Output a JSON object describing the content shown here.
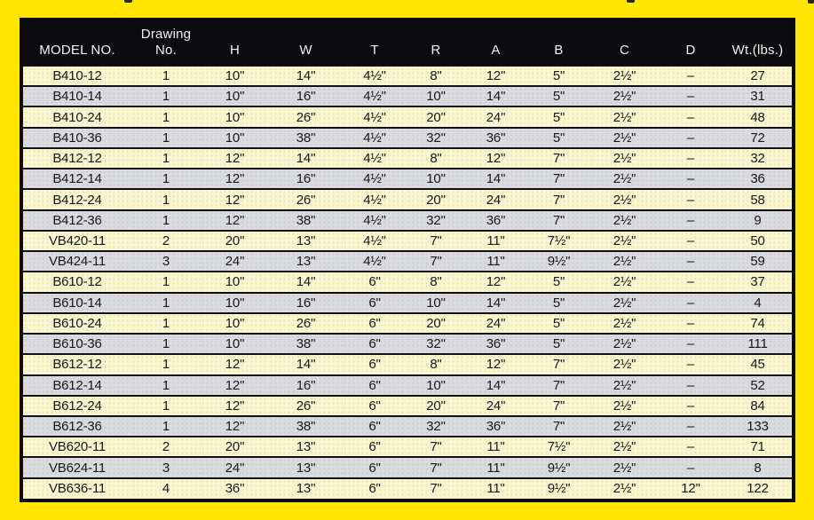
{
  "page": {
    "background_color": "#ffe600"
  },
  "spec_table": {
    "header_bg": "#0c0c10",
    "header_text_color": "#f4f2ee",
    "row_color_odd": "#fbf6cd",
    "row_color_even": "#d9dbde",
    "columns": [
      {
        "id": "model",
        "label": "MODEL NO."
      },
      {
        "id": "drawing_no",
        "label": "Drawing\nNo."
      },
      {
        "id": "h",
        "label": "H"
      },
      {
        "id": "w",
        "label": "W"
      },
      {
        "id": "t",
        "label": "T"
      },
      {
        "id": "r",
        "label": "R"
      },
      {
        "id": "a",
        "label": "A"
      },
      {
        "id": "b",
        "label": "B"
      },
      {
        "id": "c",
        "label": "C"
      },
      {
        "id": "d",
        "label": "D"
      },
      {
        "id": "wt",
        "label": "Wt.(lbs.)"
      }
    ],
    "rows": [
      [
        "B410-12",
        "1",
        "10\"",
        "14\"",
        "4½\"",
        "8\"",
        "12\"",
        "5\"",
        "2½\"",
        "–",
        "27"
      ],
      [
        "B410-14",
        "1",
        "10\"",
        "16\"",
        "4½\"",
        "10\"",
        "14\"",
        "5\"",
        "2½\"",
        "–",
        "31"
      ],
      [
        "B410-24",
        "1",
        "10\"",
        "26\"",
        "4½\"",
        "20\"",
        "24\"",
        "5\"",
        "2½\"",
        "–",
        "48"
      ],
      [
        "B410-36",
        "1",
        "10\"",
        "38\"",
        "4½\"",
        "32\"",
        "36\"",
        "5\"",
        "2½\"",
        "–",
        "72"
      ],
      [
        "B412-12",
        "1",
        "12\"",
        "14\"",
        "4½\"",
        "8\"",
        "12\"",
        "7\"",
        "2½\"",
        "–",
        "32"
      ],
      [
        "B412-14",
        "1",
        "12\"",
        "16\"",
        "4½\"",
        "10\"",
        "14\"",
        "7\"",
        "2½\"",
        "–",
        "36"
      ],
      [
        "B412-24",
        "1",
        "12\"",
        "26\"",
        "4½\"",
        "20\"",
        "24\"",
        "7\"",
        "2½\"",
        "–",
        "58"
      ],
      [
        "B412-36",
        "1",
        "12\"",
        "38\"",
        "4½\"",
        "32\"",
        "36\"",
        "7\"",
        "2½\"",
        "–",
        "9"
      ],
      [
        "VB420-11",
        "2",
        "20\"",
        "13\"",
        "4½\"",
        "7\"",
        "11\"",
        "7½\"",
        "2½\"",
        "–",
        "50"
      ],
      [
        "VB424-11",
        "3",
        "24\"",
        "13\"",
        "4½\"",
        "7\"",
        "11\"",
        "9½\"",
        "2½\"",
        "–",
        "59"
      ],
      [
        "B610-12",
        "1",
        "10\"",
        "14\"",
        "6\"",
        "8\"",
        "12\"",
        "5\"",
        "2½\"",
        "–",
        "37"
      ],
      [
        "B610-14",
        "1",
        "10\"",
        "16\"",
        "6\"",
        "10\"",
        "14\"",
        "5\"",
        "2½\"",
        "–",
        "4"
      ],
      [
        "B610-24",
        "1",
        "10\"",
        "26\"",
        "6\"",
        "20\"",
        "24\"",
        "5\"",
        "2½\"",
        "–",
        "74"
      ],
      [
        "B610-36",
        "1",
        "10\"",
        "38\"",
        "6\"",
        "32\"",
        "36\"",
        "5\"",
        "2½\"",
        "–",
        "111"
      ],
      [
        "B612-12",
        "1",
        "12\"",
        "14\"",
        "6\"",
        "8\"",
        "12\"",
        "7\"",
        "2½\"",
        "–",
        "45"
      ],
      [
        "B612-14",
        "1",
        "12\"",
        "16\"",
        "6\"",
        "10\"",
        "14\"",
        "7\"",
        "2½\"",
        "–",
        "52"
      ],
      [
        "B612-24",
        "1",
        "12\"",
        "26\"",
        "6\"",
        "20\"",
        "24\"",
        "7\"",
        "2½\"",
        "–",
        "84"
      ],
      [
        "B612-36",
        "1",
        "12\"",
        "38\"",
        "6\"",
        "32\"",
        "36\"",
        "7\"",
        "2½\"",
        "–",
        "133"
      ],
      [
        "VB620-11",
        "2",
        "20\"",
        "13\"",
        "6\"",
        "7\"",
        "11\"",
        "7½\"",
        "2½\"",
        "–",
        "71"
      ],
      [
        "VB624-11",
        "3",
        "24\"",
        "13\"",
        "6\"",
        "7\"",
        "11\"",
        "9½\"",
        "2½\"",
        "–",
        "8"
      ],
      [
        "VB636-11",
        "4",
        "36\"",
        "13\"",
        "6\"",
        "7\"",
        "11\"",
        "9½\"",
        "2½\"",
        "12\"",
        "122"
      ]
    ]
  }
}
